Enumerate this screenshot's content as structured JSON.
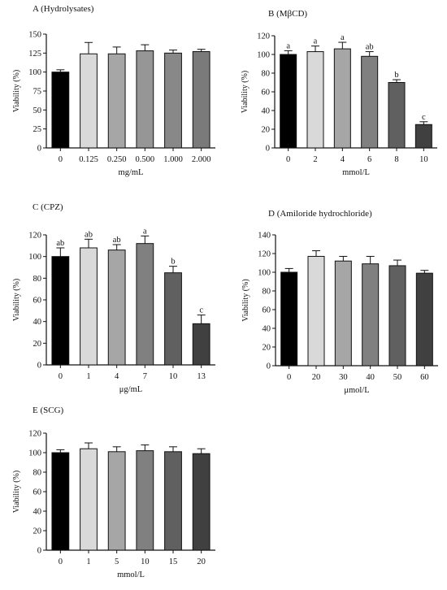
{
  "chart_data": [
    {
      "type": "bar",
      "title": "A (Hydrolysates)",
      "xlabel": "mg/mL",
      "ylabel": "Viability (%)",
      "ylim": [
        0,
        150
      ],
      "yticks": [
        0,
        25,
        50,
        75,
        100,
        125,
        150
      ],
      "categories": [
        "0",
        "0.125",
        "0.250",
        "0.500",
        "1.000",
        "2.000"
      ],
      "values": [
        100,
        124,
        124,
        128,
        125,
        127
      ],
      "errors": [
        3,
        15,
        9,
        8,
        4,
        3
      ],
      "labels": [],
      "colors": [
        "#000000",
        "#d9d9d9",
        "#a6a6a6",
        "#969696",
        "#888888",
        "#7a7a7a"
      ]
    },
    {
      "type": "bar",
      "title": "B (MβCD)",
      "xlabel": "mmol/L",
      "ylabel": "Viability (%)",
      "ylim": [
        0,
        120
      ],
      "yticks": [
        0,
        20,
        40,
        60,
        80,
        100,
        120
      ],
      "categories": [
        "0",
        "2",
        "4",
        "6",
        "8",
        "10"
      ],
      "values": [
        100,
        103,
        106,
        98,
        70,
        25
      ],
      "errors": [
        4,
        6,
        7,
        5,
        3,
        3
      ],
      "labels": [
        "a",
        "a",
        "a",
        "ab",
        "b",
        "c"
      ],
      "colors": [
        "#000000",
        "#d9d9d9",
        "#a6a6a6",
        "#808080",
        "#606060",
        "#404040"
      ]
    },
    {
      "type": "bar",
      "title": "C (CPZ)",
      "xlabel": "μg/mL",
      "ylabel": "Viability (%)",
      "ylim": [
        0,
        120
      ],
      "yticks": [
        0,
        20,
        40,
        60,
        80,
        100,
        120
      ],
      "categories": [
        "0",
        "1",
        "4",
        "7",
        "10",
        "13"
      ],
      "values": [
        100,
        108,
        106,
        112,
        85,
        38
      ],
      "errors": [
        8,
        8,
        5,
        7,
        6,
        8
      ],
      "labels": [
        "ab",
        "ab",
        "ab",
        "a",
        "b",
        "c"
      ],
      "colors": [
        "#000000",
        "#d9d9d9",
        "#a6a6a6",
        "#808080",
        "#606060",
        "#404040"
      ]
    },
    {
      "type": "bar",
      "title": "D (Amiloride hydrochloride)",
      "xlabel": "μmol/L",
      "ylabel": "Viability (%)",
      "ylim": [
        0,
        140
      ],
      "yticks": [
        0,
        20,
        40,
        60,
        80,
        100,
        120,
        140
      ],
      "categories": [
        "0",
        "20",
        "30",
        "40",
        "50",
        "60"
      ],
      "values": [
        100,
        117,
        112,
        109,
        107,
        99
      ],
      "errors": [
        4,
        6,
        5,
        8,
        6,
        3
      ],
      "labels": [],
      "colors": [
        "#000000",
        "#d9d9d9",
        "#a6a6a6",
        "#808080",
        "#606060",
        "#404040"
      ]
    },
    {
      "type": "bar",
      "title": "E (SCG)",
      "xlabel": "mmol/L",
      "ylabel": "Viability (%)",
      "ylim": [
        0,
        120
      ],
      "yticks": [
        0,
        20,
        40,
        60,
        80,
        100,
        120
      ],
      "categories": [
        "0",
        "1",
        "5",
        "10",
        "15",
        "20"
      ],
      "values": [
        100,
        104,
        101,
        102,
        101,
        99
      ],
      "errors": [
        3,
        6,
        5,
        6,
        5,
        5
      ],
      "labels": [],
      "colors": [
        "#000000",
        "#d9d9d9",
        "#a6a6a6",
        "#808080",
        "#606060",
        "#404040"
      ]
    }
  ]
}
